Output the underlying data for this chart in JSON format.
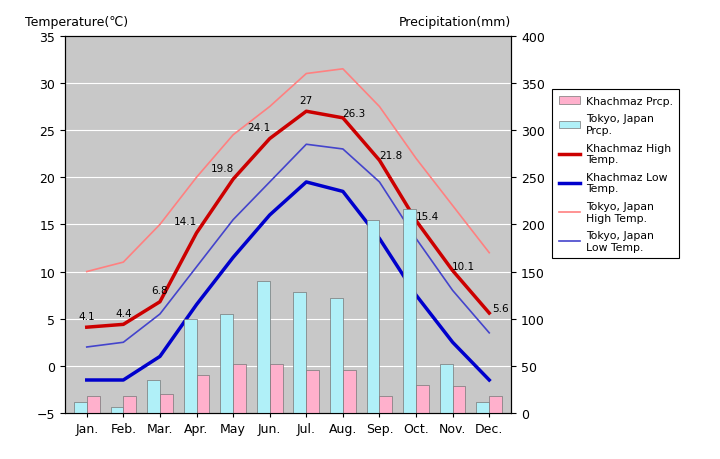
{
  "months": [
    "Jan.",
    "Feb.",
    "Mar.",
    "Apr.",
    "May",
    "Jun.",
    "Jul.",
    "Aug.",
    "Sep.",
    "Oct.",
    "Nov.",
    "Dec."
  ],
  "khachmaz_high": [
    4.1,
    4.4,
    6.8,
    14.1,
    19.8,
    24.1,
    27.0,
    26.3,
    21.8,
    15.4,
    10.1,
    5.6
  ],
  "khachmaz_low": [
    -1.5,
    -1.5,
    1.0,
    6.5,
    11.5,
    16.0,
    19.5,
    18.5,
    13.5,
    7.5,
    2.5,
    -1.5
  ],
  "tokyo_high": [
    10.0,
    11.0,
    15.0,
    20.0,
    24.5,
    27.5,
    31.0,
    31.5,
    27.5,
    22.0,
    17.0,
    12.0
  ],
  "tokyo_low": [
    2.0,
    2.5,
    5.5,
    10.5,
    15.5,
    19.5,
    23.5,
    23.0,
    19.5,
    13.5,
    8.0,
    3.5
  ],
  "khachmaz_prcp_mm": [
    18,
    18,
    20,
    40,
    52,
    52,
    46,
    46,
    18,
    30,
    29,
    18
  ],
  "tokyo_prcp_mm": [
    12,
    6,
    35,
    100,
    105,
    140,
    128,
    122,
    205,
    216,
    52,
    12
  ],
  "temp_ylim": [
    -5,
    35
  ],
  "prcp_ylim": [
    0,
    400
  ],
  "background_color": "#c8c8c8",
  "plot_bg_color": "#c0c0c0",
  "khachmaz_high_color": "#cc0000",
  "khachmaz_low_color": "#0000cc",
  "tokyo_high_color": "#ff8080",
  "tokyo_low_color": "#4444cc",
  "khachmaz_prcp_color": "#ffb0cc",
  "tokyo_prcp_color": "#b0f0f8",
  "title_left": "Temperature(℃)",
  "title_right": "Precipitation(mm)",
  "annot_high": [
    4.1,
    4.4,
    6.8,
    14.1,
    19.8,
    24.1,
    27,
    26.3,
    21.8,
    15.4,
    10.1,
    5.6
  ]
}
